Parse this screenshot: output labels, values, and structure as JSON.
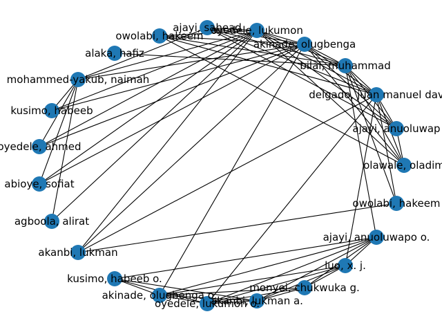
{
  "graph": {
    "node_color": "#1f78b4",
    "edge_color": "#000000",
    "nodes": [
      {
        "id": "ajayi_sahead",
        "label": "ajayi, sahead"
      },
      {
        "id": "oyedele_lukumon",
        "label": "oyedele, lukumon"
      },
      {
        "id": "owolabi_hakeem",
        "label": "owolabi, hakeem"
      },
      {
        "id": "akinade_olugbenga",
        "label": "akinade, olugbenga"
      },
      {
        "id": "alaka_hafiz",
        "label": "alaka, hafiz"
      },
      {
        "id": "bilal_muhammad",
        "label": "bilal, muhammad"
      },
      {
        "id": "mohammed_yakub_naimah",
        "label": "mohammed-yakub, naimah"
      },
      {
        "id": "delgado_juan_manuel",
        "label": "delgado, juan manuel dav"
      },
      {
        "id": "kusimo_habeeb",
        "label": "kusimo, habeeb"
      },
      {
        "id": "ajayi_anuoluwap",
        "label": "ajayi, anuoluwap"
      },
      {
        "id": "oyedele_ahmed",
        "label": "oyedele, ahmed"
      },
      {
        "id": "olawale_oladim",
        "label": "olawale, oladim"
      },
      {
        "id": "abioye_sofiat",
        "label": "abioye, sofiat"
      },
      {
        "id": "owolabi_hakeem_2",
        "label": "owolabi, hakeem"
      },
      {
        "id": "agboola_alirat",
        "label": "agboola, alirat"
      },
      {
        "id": "ajayi_anuoluwapo_o",
        "label": "ajayi, anuoluwapo o."
      },
      {
        "id": "akanbi_lukman",
        "label": "akanbi, lukman"
      },
      {
        "id": "luo_x_j",
        "label": "luo, x. j."
      },
      {
        "id": "kusimo_habeeb_o",
        "label": "kusimo, habeeb o."
      },
      {
        "id": "monyei_chukwuka_g",
        "label": "monyei, chukwuka g."
      },
      {
        "id": "akinade_olugbenga_o",
        "label": "akinade, olugbenga o."
      },
      {
        "id": "akanbi_lukman_a",
        "label": "akanbi, lukman a."
      },
      {
        "id": "oyedele_lukumon_o",
        "label": "oyedele, lukumon o."
      }
    ],
    "edges": [
      [
        "ajayi_sahead",
        "oyedele_lukumon"
      ],
      [
        "ajayi_sahead",
        "akinade_olugbenga"
      ],
      [
        "ajayi_sahead",
        "bilal_muhammad"
      ],
      [
        "ajayi_sahead",
        "delgado_juan_manuel"
      ],
      [
        "ajayi_sahead",
        "mohammed_yakub_naimah"
      ],
      [
        "ajayi_sahead",
        "ajayi_anuoluwap"
      ],
      [
        "owolabi_hakeem",
        "oyedele_lukumon"
      ],
      [
        "owolabi_hakeem",
        "akinade_olugbenga"
      ],
      [
        "owolabi_hakeem",
        "bilal_muhammad"
      ],
      [
        "owolabi_hakeem",
        "delgado_juan_manuel"
      ],
      [
        "owolabi_hakeem",
        "olawale_oladim"
      ],
      [
        "alaka_hafiz",
        "bilal_muhammad"
      ],
      [
        "oyedele_lukumon",
        "akinade_olugbenga"
      ],
      [
        "oyedele_lukumon",
        "bilal_muhammad"
      ],
      [
        "oyedele_lukumon",
        "delgado_juan_manuel"
      ],
      [
        "oyedele_lukumon",
        "ajayi_anuoluwap"
      ],
      [
        "oyedele_lukumon",
        "olawale_oladim"
      ],
      [
        "oyedele_lukumon",
        "mohammed_yakub_naimah"
      ],
      [
        "oyedele_lukumon",
        "kusimo_habeeb"
      ],
      [
        "oyedele_lukumon",
        "oyedele_ahmed"
      ],
      [
        "oyedele_lukumon",
        "abioye_sofiat"
      ],
      [
        "oyedele_lukumon",
        "agboola_alirat"
      ],
      [
        "oyedele_lukumon",
        "akanbi_lukman"
      ],
      [
        "akinade_olugbenga",
        "bilal_muhammad"
      ],
      [
        "akinade_olugbenga",
        "delgado_juan_manuel"
      ],
      [
        "akinade_olugbenga",
        "ajayi_anuoluwap"
      ],
      [
        "akinade_olugbenga",
        "olawale_oladim"
      ],
      [
        "akinade_olugbenga",
        "mohammed_yakub_naimah"
      ],
      [
        "akinade_olugbenga",
        "kusimo_habeeb"
      ],
      [
        "akinade_olugbenga",
        "oyedele_ahmed"
      ],
      [
        "akinade_olugbenga",
        "abioye_sofiat"
      ],
      [
        "akinade_olugbenga",
        "akanbi_lukman"
      ],
      [
        "akinade_olugbenga",
        "akinade_olugbenga_o"
      ],
      [
        "bilal_muhammad",
        "delgado_juan_manuel"
      ],
      [
        "bilal_muhammad",
        "ajayi_anuoluwap"
      ],
      [
        "bilal_muhammad",
        "olawale_oladim"
      ],
      [
        "bilal_muhammad",
        "owolabi_hakeem_2"
      ],
      [
        "bilal_muhammad",
        "ajayi_anuoluwapo_o"
      ],
      [
        "mohammed_yakub_naimah",
        "kusimo_habeeb"
      ],
      [
        "mohammed_yakub_naimah",
        "oyedele_ahmed"
      ],
      [
        "mohammed_yakub_naimah",
        "abioye_sofiat"
      ],
      [
        "mohammed_yakub_naimah",
        "agboola_alirat"
      ],
      [
        "delgado_juan_manuel",
        "ajayi_anuoluwap"
      ],
      [
        "delgado_juan_manuel",
        "olawale_oladim"
      ],
      [
        "delgado_juan_manuel",
        "akanbi_lukman"
      ],
      [
        "delgado_juan_manuel",
        "oyedele_lukumon_o"
      ],
      [
        "delgado_juan_manuel",
        "luo_x_j"
      ],
      [
        "delgado_juan_manuel",
        "owolabi_hakeem_2"
      ],
      [
        "ajayi_anuoluwap",
        "olawale_oladim"
      ],
      [
        "ajayi_anuoluwapo_o",
        "luo_x_j"
      ],
      [
        "ajayi_anuoluwapo_o",
        "monyei_chukwuka_g"
      ],
      [
        "ajayi_anuoluwapo_o",
        "akanbi_lukman_a"
      ],
      [
        "ajayi_anuoluwapo_o",
        "oyedele_lukumon_o"
      ],
      [
        "ajayi_anuoluwapo_o",
        "akinade_olugbenga_o"
      ],
      [
        "ajayi_anuoluwapo_o",
        "kusimo_habeeb_o"
      ],
      [
        "luo_x_j",
        "monyei_chukwuka_g"
      ],
      [
        "luo_x_j",
        "akanbi_lukman_a"
      ],
      [
        "luo_x_j",
        "oyedele_lukumon_o"
      ],
      [
        "luo_x_j",
        "akinade_olugbenga_o"
      ],
      [
        "monyei_chukwuka_g",
        "akanbi_lukman_a"
      ],
      [
        "monyei_chukwuka_g",
        "oyedele_lukumon_o"
      ],
      [
        "monyei_chukwuka_g",
        "akinade_olugbenga_o"
      ],
      [
        "akanbi_lukman_a",
        "oyedele_lukumon_o"
      ],
      [
        "akanbi_lukman_a",
        "akinade_olugbenga_o"
      ],
      [
        "akanbi_lukman_a",
        "kusimo_habeeb_o"
      ],
      [
        "oyedele_lukumon_o",
        "akinade_olugbenga_o"
      ],
      [
        "oyedele_lukumon_o",
        "kusimo_habeeb_o"
      ],
      [
        "akinade_olugbenga_o",
        "kusimo_habeeb_o"
      ],
      [
        "owolabi_hakeem_2",
        "akanbi_lukman"
      ]
    ]
  }
}
